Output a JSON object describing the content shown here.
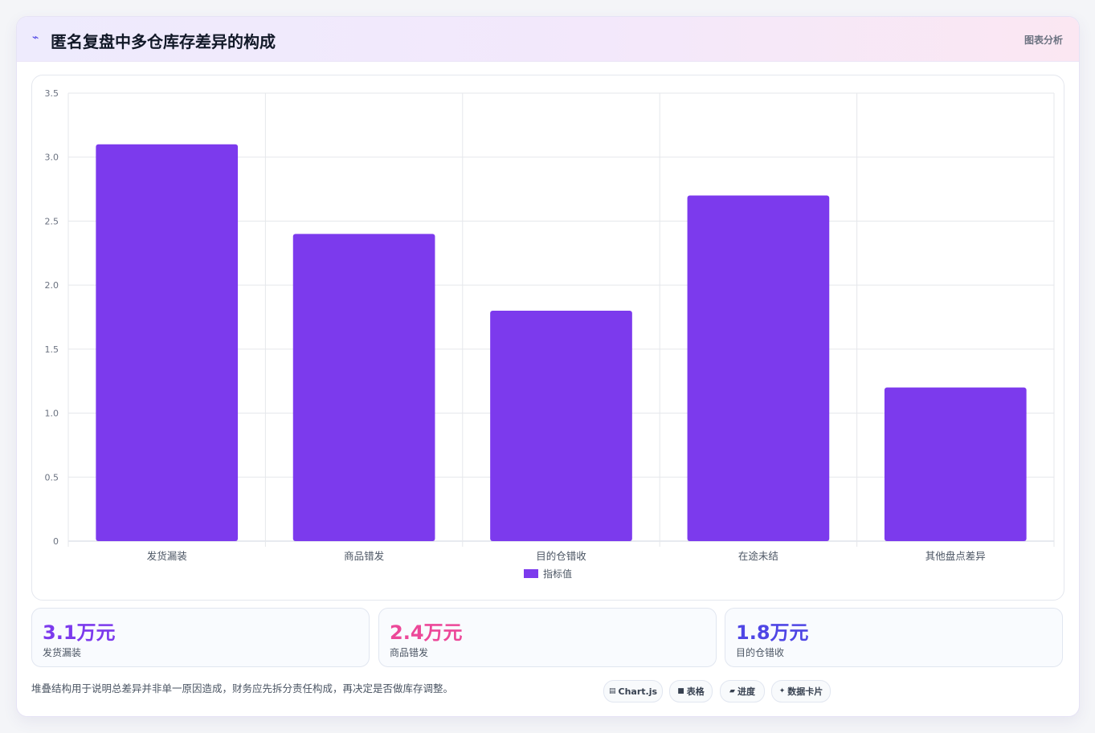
{
  "header": {
    "icon": "trend-icon",
    "title": "匿名复盘中多仓库存差异的构成",
    "tag": "图表分析"
  },
  "chart_data": {
    "type": "bar",
    "categories": [
      "发货漏装",
      "商品错发",
      "目的仓错收",
      "在途未结",
      "其他盘点差异"
    ],
    "series": [
      {
        "name": "指标值",
        "values": [
          3.1,
          2.4,
          1.8,
          2.7,
          1.2
        ],
        "color": "#7c3aed"
      }
    ],
    "ylim": [
      0,
      3.5
    ],
    "yticks": [
      "0",
      "0.5",
      "1.0",
      "1.5",
      "2.0",
      "2.5",
      "3.0",
      "3.5"
    ],
    "grid": true,
    "legend": "bottom"
  },
  "stats": [
    {
      "value": "3.1万元",
      "label": "发货漏装",
      "color": "#7c3aed"
    },
    {
      "value": "2.4万元",
      "label": "商品错发",
      "color": "#ec4899"
    },
    {
      "value": "1.8万元",
      "label": "目的仓错收",
      "color": "#4f46e5"
    }
  ],
  "footnote": "堆叠结构用于说明总差异并非单一原因造成，财务应先拆分责任构成，再决定是否做库存调整。",
  "pills": [
    {
      "icon": "chart-icon",
      "glyph": "▤",
      "label": "Chart.js"
    },
    {
      "icon": "table-icon",
      "glyph": "■",
      "label": "表格"
    },
    {
      "icon": "progress-icon",
      "glyph": "▰",
      "label": "进度"
    },
    {
      "icon": "sparkle-icon",
      "glyph": "✦",
      "label": "数据卡片"
    }
  ]
}
